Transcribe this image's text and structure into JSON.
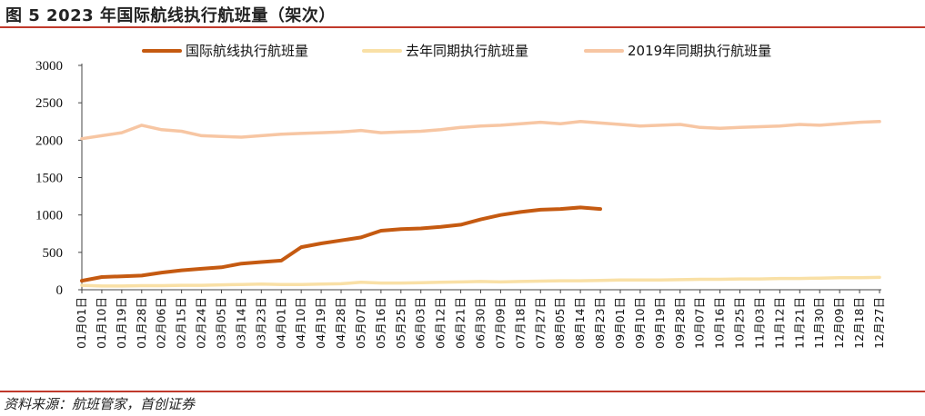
{
  "header": {
    "title": "图 5 2023 年国际航线执行航班量（架次）"
  },
  "footer": {
    "source": "资料来源：航班管家，首创证券"
  },
  "colors": {
    "rule": "#c0392b",
    "series_2023": "#c55a11",
    "series_last_year": "#f9e0a6",
    "series_2019": "#f7c6a3"
  },
  "chart_data": {
    "type": "line",
    "title": "",
    "xlabel": "",
    "ylabel": "",
    "ylim": [
      0,
      3000
    ],
    "yticks": [
      "0",
      "500",
      "1000",
      "1500",
      "2000",
      "2500",
      "3000"
    ],
    "legend_position": "top",
    "x_categories": [
      "01月01日",
      "01月10日",
      "01月19日",
      "01月28日",
      "02月06日",
      "02月15日",
      "02月24日",
      "03月05日",
      "03月14日",
      "03月23日",
      "04月01日",
      "04月10日",
      "04月19日",
      "04月28日",
      "05月07日",
      "05月16日",
      "05月25日",
      "06月03日",
      "06月12日",
      "06月21日",
      "06月30日",
      "07月09日",
      "07月18日",
      "07月27日",
      "08月05日",
      "08月14日",
      "08月23日",
      "09月01日",
      "09月10日",
      "09月19日",
      "09月28日",
      "10月07日",
      "10月16日",
      "10月25日",
      "11月03日",
      "11月12日",
      "11月21日",
      "11月30日",
      "12月09日",
      "12月18日",
      "12月27日"
    ],
    "series": [
      {
        "name": "国际航线执行航班量",
        "values": [
          120,
          170,
          180,
          190,
          230,
          260,
          280,
          300,
          350,
          370,
          390,
          570,
          620,
          660,
          700,
          790,
          810,
          820,
          840,
          870,
          940,
          1000,
          1040,
          1070,
          1080,
          1100,
          1080
        ]
      },
      {
        "name": "去年同期执行航班量",
        "values": [
          60,
          50,
          50,
          55,
          55,
          60,
          60,
          65,
          70,
          75,
          70,
          70,
          75,
          80,
          100,
          90,
          90,
          95,
          100,
          105,
          110,
          105,
          110,
          115,
          120,
          120,
          125,
          130,
          130,
          130,
          135,
          140,
          140,
          145,
          145,
          150,
          150,
          155,
          160,
          160,
          165
        ]
      },
      {
        "name": "2019年同期执行航班量",
        "values": [
          2020,
          2060,
          2100,
          2200,
          2140,
          2120,
          2060,
          2050,
          2040,
          2060,
          2080,
          2090,
          2100,
          2110,
          2130,
          2100,
          2110,
          2120,
          2140,
          2170,
          2190,
          2200,
          2220,
          2240,
          2220,
          2250,
          2230,
          2210,
          2190,
          2200,
          2210,
          2170,
          2160,
          2170,
          2180,
          2190,
          2210,
          2200,
          2220,
          2240,
          2250
        ]
      }
    ]
  }
}
